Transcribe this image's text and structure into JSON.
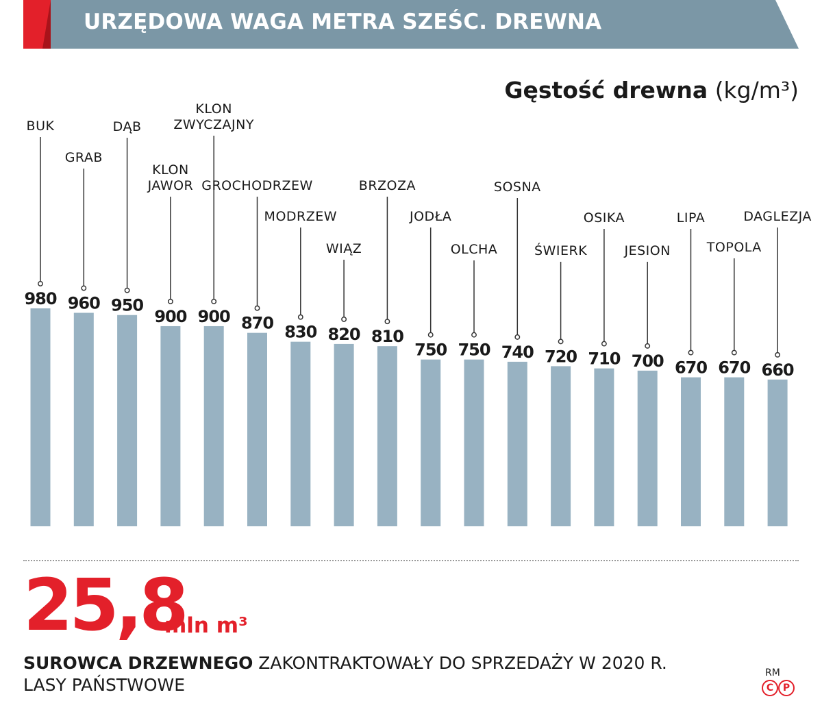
{
  "header": {
    "title": "URZĘDOWA WAGA METRA SZEŚC. DREWNA"
  },
  "colors": {
    "bar": "#98b2c2",
    "banner": "#7b97a6",
    "accent": "#e3202a",
    "text": "#1a1a1a"
  },
  "chart_data": {
    "type": "bar",
    "ylabel_bold": "Gęstość drewna",
    "ylabel_unit": "(kg/m³)",
    "ylim": [
      0,
      980
    ],
    "grid": false,
    "categories": [
      [
        "BUK"
      ],
      [
        "GRAB"
      ],
      [
        "DĄB"
      ],
      [
        "KLON",
        "JAWOR"
      ],
      [
        "KLON",
        "ZWYCZAJNY"
      ],
      [
        "GROCHODRZEW"
      ],
      [
        "MODRZEW"
      ],
      [
        "WIĄZ"
      ],
      [
        "BRZOZA"
      ],
      [
        "JODŁA"
      ],
      [
        "OLCHA"
      ],
      [
        "SOSNA"
      ],
      [
        "ŚWIERK"
      ],
      [
        "OSIKA"
      ],
      [
        "JESION"
      ],
      [
        "LIPA"
      ],
      [
        "TOPOLA"
      ],
      [
        "DAGLEZJA"
      ]
    ],
    "values": [
      980,
      960,
      950,
      900,
      900,
      870,
      830,
      820,
      810,
      750,
      750,
      740,
      720,
      710,
      700,
      670,
      670,
      660
    ]
  },
  "summary": {
    "big_value": "25,8",
    "big_unit": "mln m³",
    "caption_bold": "SUROWCA DRZEWNEGO",
    "caption_rest": " ZAKONTRAKTOWAŁY DO SPRZEDAŻY W 2020 R.",
    "caption_line2": "LASY PAŃSTWOWE"
  },
  "logo": {
    "text": "RM",
    "c": "C",
    "p": "P"
  }
}
